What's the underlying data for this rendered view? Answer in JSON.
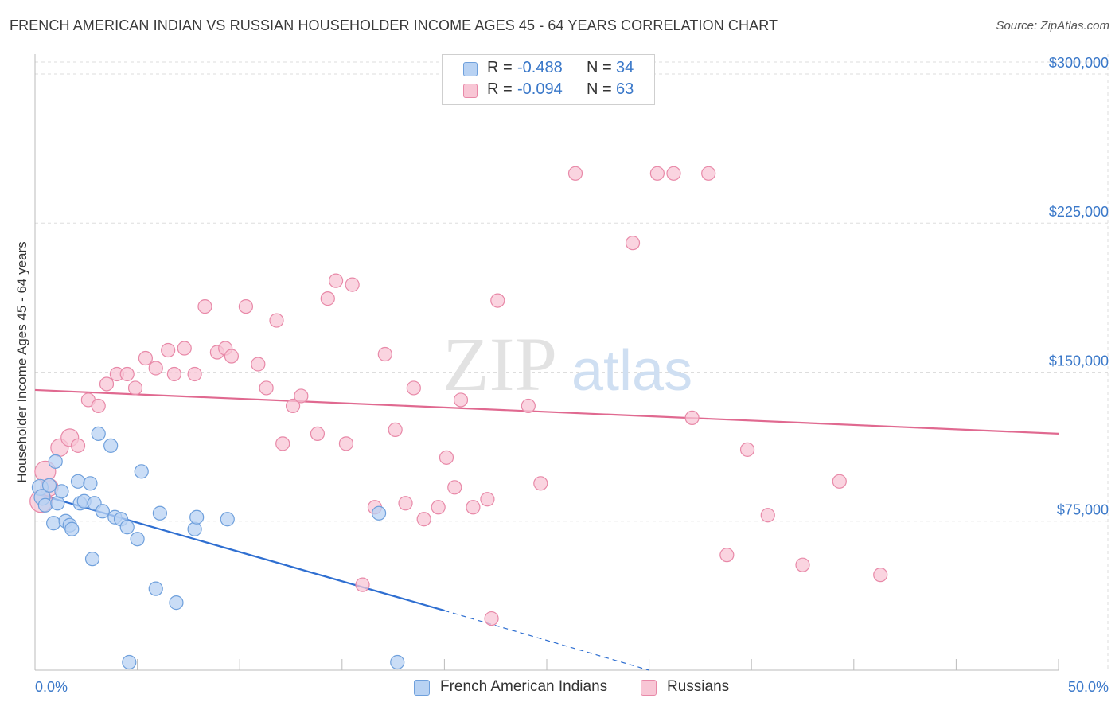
{
  "title": "FRENCH AMERICAN INDIAN VS RUSSIAN HOUSEHOLDER INCOME AGES 45 - 64 YEARS CORRELATION CHART",
  "source": "Source: ZipAtlas.com",
  "watermark": {
    "zip": "ZIP",
    "atlas": "atlas"
  },
  "legend": {
    "rows": [
      {
        "r_label": "R = ",
        "r_value": "-0.488",
        "n_label": "N = ",
        "n_value": "34"
      },
      {
        "r_label": "R = ",
        "r_value": "-0.094",
        "n_label": "N = ",
        "n_value": "63"
      }
    ]
  },
  "bottom_legend": {
    "series1": "French American Indians",
    "series2": "Russians"
  },
  "colors": {
    "blue_fill": "#b8d2f3",
    "blue_stroke": "#6fa0dc",
    "blue_line": "#2f6fd1",
    "pink_fill": "#f8c6d5",
    "pink_stroke": "#e889a8",
    "pink_line": "#e06990",
    "axis_label": "#3a78c9",
    "grid": "#dddddd"
  },
  "chart_data": {
    "type": "scatter",
    "title": "FRENCH AMERICAN INDIAN VS RUSSIAN HOUSEHOLDER INCOME AGES 45 - 64 YEARS CORRELATION CHART",
    "xlabel": "",
    "ylabel": "Householder Income Ages 45 - 64 years",
    "xlim": [
      0,
      50
    ],
    "ylim": [
      0,
      310000
    ],
    "x_tick_labels": [
      "0.0%",
      "50.0%"
    ],
    "y_ticks": [
      75000,
      150000,
      225000,
      300000
    ],
    "y_tick_labels": [
      "$75,000",
      "$150,000",
      "$225,000",
      "$300,000"
    ],
    "grid": true,
    "legend_position": "top-center",
    "series": [
      {
        "name": "French American Indians",
        "r": -0.488,
        "n": 34,
        "points": [
          [
            0.25,
            92000
          ],
          [
            0.35,
            87000
          ],
          [
            0.5,
            83000
          ],
          [
            0.7,
            93000
          ],
          [
            0.9,
            74000
          ],
          [
            1.0,
            105000
          ],
          [
            1.1,
            84000
          ],
          [
            1.3,
            90000
          ],
          [
            1.5,
            75000
          ],
          [
            1.7,
            73000
          ],
          [
            1.8,
            71000
          ],
          [
            2.1,
            95000
          ],
          [
            2.2,
            84000
          ],
          [
            2.4,
            85000
          ],
          [
            2.7,
            94000
          ],
          [
            2.8,
            56000
          ],
          [
            2.9,
            84000
          ],
          [
            3.1,
            119000
          ],
          [
            3.3,
            80000
          ],
          [
            3.7,
            113000
          ],
          [
            3.9,
            77000
          ],
          [
            4.2,
            76000
          ],
          [
            4.5,
            72000
          ],
          [
            4.6,
            4000
          ],
          [
            5.0,
            66000
          ],
          [
            5.2,
            100000
          ],
          [
            5.9,
            41000
          ],
          [
            6.1,
            79000
          ],
          [
            6.9,
            34000
          ],
          [
            7.8,
            71000
          ],
          [
            7.9,
            77000
          ],
          [
            9.4,
            76000
          ],
          [
            16.8,
            79000
          ],
          [
            17.7,
            4000
          ]
        ],
        "trend": {
          "x0": 0,
          "y0": 89000,
          "x1": 20,
          "y1": 30000,
          "dash_to_x": 30,
          "dash_to_y": 0
        }
      },
      {
        "name": "Russians",
        "r": -0.094,
        "n": 63,
        "points": [
          [
            0.3,
            85000
          ],
          [
            0.5,
            100000
          ],
          [
            0.7,
            92000
          ],
          [
            1.2,
            112000
          ],
          [
            1.7,
            117000
          ],
          [
            2.1,
            113000
          ],
          [
            2.6,
            136000
          ],
          [
            3.1,
            133000
          ],
          [
            3.5,
            144000
          ],
          [
            4.0,
            149000
          ],
          [
            4.5,
            149000
          ],
          [
            4.9,
            142000
          ],
          [
            5.4,
            157000
          ],
          [
            5.9,
            152000
          ],
          [
            6.5,
            161000
          ],
          [
            6.8,
            149000
          ],
          [
            7.3,
            162000
          ],
          [
            7.8,
            149000
          ],
          [
            8.3,
            183000
          ],
          [
            8.9,
            160000
          ],
          [
            9.3,
            162000
          ],
          [
            9.6,
            158000
          ],
          [
            10.3,
            183000
          ],
          [
            10.9,
            154000
          ],
          [
            11.3,
            142000
          ],
          [
            11.8,
            176000
          ],
          [
            12.1,
            114000
          ],
          [
            12.6,
            133000
          ],
          [
            13.0,
            138000
          ],
          [
            13.8,
            119000
          ],
          [
            14.3,
            187000
          ],
          [
            14.7,
            196000
          ],
          [
            15.2,
            114000
          ],
          [
            15.5,
            194000
          ],
          [
            16.0,
            43000
          ],
          [
            16.6,
            82000
          ],
          [
            17.1,
            159000
          ],
          [
            17.6,
            121000
          ],
          [
            18.1,
            84000
          ],
          [
            18.5,
            142000
          ],
          [
            19.0,
            76000
          ],
          [
            19.7,
            82000
          ],
          [
            20.1,
            107000
          ],
          [
            20.5,
            92000
          ],
          [
            20.8,
            136000
          ],
          [
            21.4,
            82000
          ],
          [
            22.1,
            86000
          ],
          [
            22.3,
            26000
          ],
          [
            22.6,
            186000
          ],
          [
            24.1,
            133000
          ],
          [
            24.7,
            94000
          ],
          [
            26.4,
            250000
          ],
          [
            29.2,
            215000
          ],
          [
            30.4,
            250000
          ],
          [
            31.2,
            250000
          ],
          [
            32.1,
            127000
          ],
          [
            32.9,
            250000
          ],
          [
            33.8,
            58000
          ],
          [
            34.8,
            111000
          ],
          [
            35.8,
            78000
          ],
          [
            37.5,
            53000
          ],
          [
            39.3,
            95000
          ],
          [
            41.3,
            48000
          ]
        ],
        "trend": {
          "x0": 0,
          "y0": 141000,
          "x1": 50,
          "y1": 119000
        }
      }
    ]
  }
}
